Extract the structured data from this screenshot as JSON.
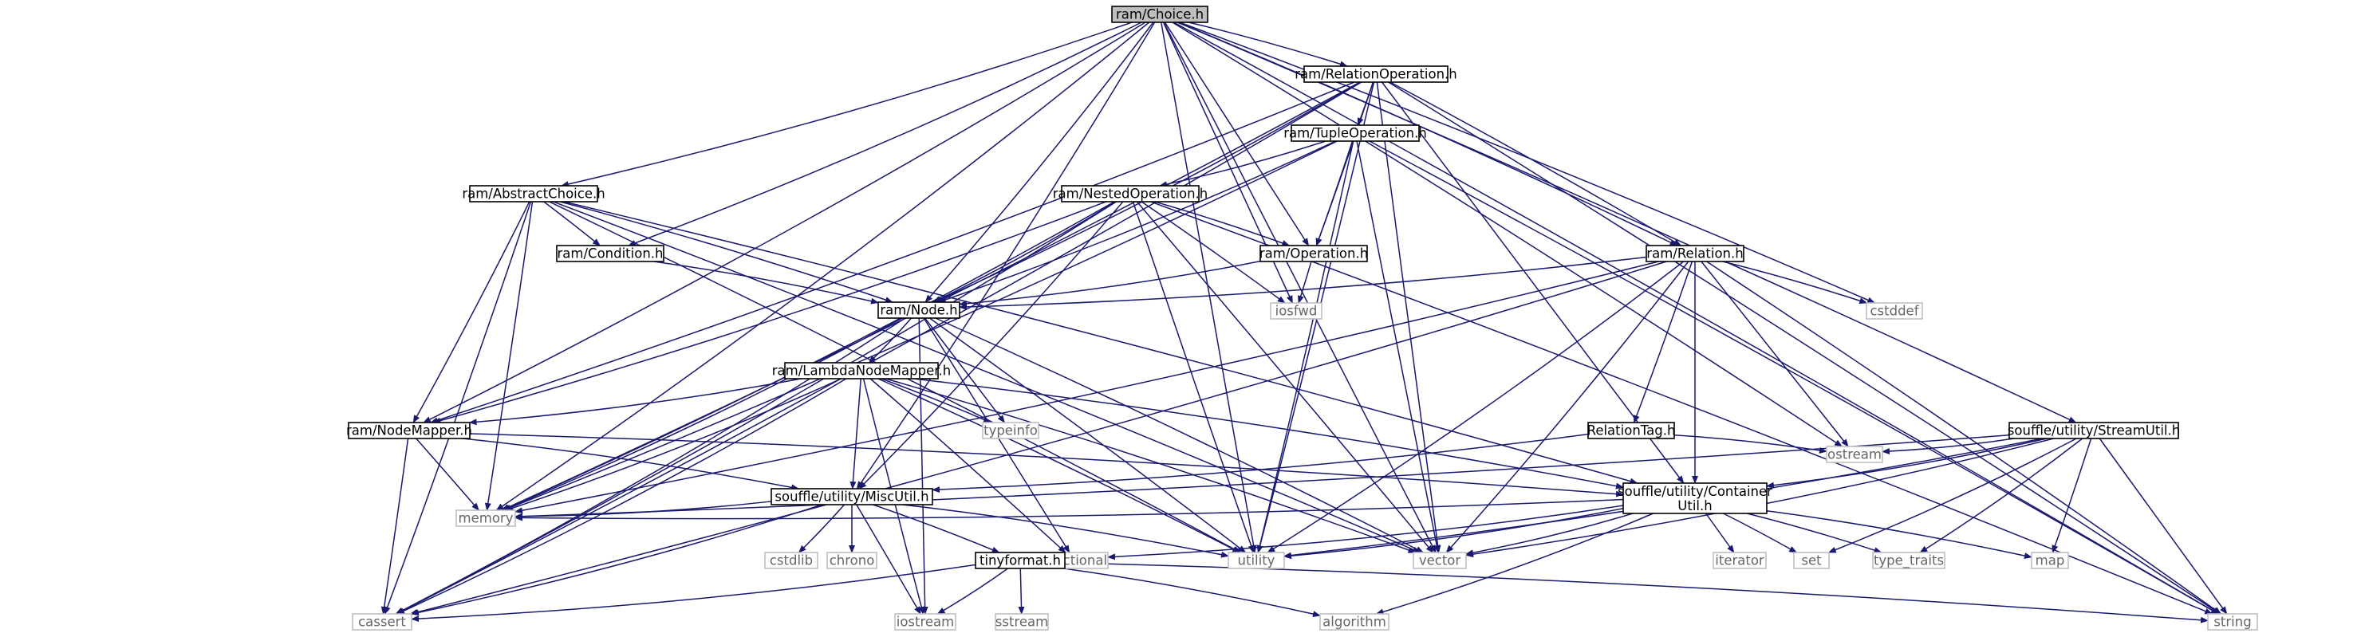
{
  "colors": {
    "edge": "#191970",
    "node_fill": "#ffffff",
    "node_border": "#000000",
    "external_border": "#bfbfbf",
    "root_fill": "#bfbfbf",
    "text": "#000000",
    "external_text": "#666666"
  },
  "nodes": [
    {
      "id": "choice",
      "label": "ram/Choice.h",
      "kind": "root"
    },
    {
      "id": "relop",
      "label": "ram/RelationOperation.h",
      "kind": "internal"
    },
    {
      "id": "tupleop",
      "label": "ram/TupleOperation.h",
      "kind": "internal"
    },
    {
      "id": "abschoice",
      "label": "ram/AbstractChoice.h",
      "kind": "internal"
    },
    {
      "id": "nestedop",
      "label": "ram/NestedOperation.h",
      "kind": "internal"
    },
    {
      "id": "condition",
      "label": "ram/Condition.h",
      "kind": "internal"
    },
    {
      "id": "operation",
      "label": "ram/Operation.h",
      "kind": "internal"
    },
    {
      "id": "relation",
      "label": "ram/Relation.h",
      "kind": "internal"
    },
    {
      "id": "node",
      "label": "ram/Node.h",
      "kind": "internal"
    },
    {
      "id": "iosfwd",
      "label": "iosfwd",
      "kind": "external"
    },
    {
      "id": "cstddef",
      "label": "cstddef",
      "kind": "external"
    },
    {
      "id": "lambda",
      "label": "ram/LambdaNodeMapper.h",
      "kind": "internal"
    },
    {
      "id": "typeinfo",
      "label": "typeinfo",
      "kind": "external"
    },
    {
      "id": "nodemapper",
      "label": "ram/NodeMapper.h",
      "kind": "internal"
    },
    {
      "id": "reltag",
      "label": "RelationTag.h",
      "kind": "internal"
    },
    {
      "id": "streamutil",
      "label": "souffle/utility/StreamUtil.h",
      "kind": "internal"
    },
    {
      "id": "ostream",
      "label": "ostream",
      "kind": "external"
    },
    {
      "id": "miscutil",
      "label": "souffle/utility/MiscUtil.h",
      "kind": "internal"
    },
    {
      "id": "container",
      "label": "souffle/utility/Container Util.h",
      "lines": [
        "souffle/utility/Container",
        "Util.h"
      ],
      "kind": "internal"
    },
    {
      "id": "memory",
      "label": "memory",
      "kind": "external"
    },
    {
      "id": "cstdlib",
      "label": "cstdlib",
      "kind": "external"
    },
    {
      "id": "chrono",
      "label": "chrono",
      "kind": "external"
    },
    {
      "id": "functional",
      "label": "functional",
      "kind": "external"
    },
    {
      "id": "utility",
      "label": "utility",
      "kind": "external"
    },
    {
      "id": "vector",
      "label": "vector",
      "kind": "external"
    },
    {
      "id": "iterator",
      "label": "iterator",
      "kind": "external"
    },
    {
      "id": "set",
      "label": "set",
      "kind": "external"
    },
    {
      "id": "type_traits",
      "label": "type_traits",
      "kind": "external"
    },
    {
      "id": "map",
      "label": "map",
      "kind": "external"
    },
    {
      "id": "tinyformat",
      "label": "tinyformat.h",
      "kind": "internal"
    },
    {
      "id": "cassert",
      "label": "cassert",
      "kind": "external"
    },
    {
      "id": "iostream",
      "label": "iostream",
      "kind": "external"
    },
    {
      "id": "sstream",
      "label": "sstream",
      "kind": "external"
    },
    {
      "id": "algorithm",
      "label": "algorithm",
      "kind": "external"
    },
    {
      "id": "string",
      "label": "string",
      "kind": "external"
    }
  ],
  "edges": [
    [
      "choice",
      "relop"
    ],
    [
      "choice",
      "abschoice"
    ],
    [
      "choice",
      "condition"
    ],
    [
      "choice",
      "operation"
    ],
    [
      "choice",
      "relation"
    ],
    [
      "choice",
      "node"
    ],
    [
      "choice",
      "nodemapper"
    ],
    [
      "choice",
      "miscutil"
    ],
    [
      "choice",
      "memory"
    ],
    [
      "choice",
      "utility"
    ],
    [
      "choice",
      "vector"
    ],
    [
      "choice",
      "string"
    ],
    [
      "choice",
      "iosfwd"
    ],
    [
      "choice",
      "cstddef"
    ],
    [
      "choice",
      "ostream"
    ],
    [
      "choice",
      "streamutil"
    ],
    [
      "relop",
      "tupleop"
    ],
    [
      "relop",
      "operation"
    ],
    [
      "relop",
      "relation"
    ],
    [
      "relop",
      "node"
    ],
    [
      "relop",
      "nodemapper"
    ],
    [
      "relop",
      "container"
    ],
    [
      "relop",
      "cassert"
    ],
    [
      "relop",
      "memory"
    ],
    [
      "relop",
      "utility"
    ],
    [
      "relop",
      "vector"
    ],
    [
      "relop",
      "string"
    ],
    [
      "tupleop",
      "nestedop"
    ],
    [
      "tupleop",
      "operation"
    ],
    [
      "tupleop",
      "node"
    ],
    [
      "tupleop",
      "memory"
    ],
    [
      "tupleop",
      "utility"
    ],
    [
      "tupleop",
      "vector"
    ],
    [
      "tupleop",
      "string"
    ],
    [
      "abschoice",
      "condition"
    ],
    [
      "abschoice",
      "node"
    ],
    [
      "abschoice",
      "nodemapper"
    ],
    [
      "abschoice",
      "cassert"
    ],
    [
      "abschoice",
      "memory"
    ],
    [
      "abschoice",
      "utility"
    ],
    [
      "abschoice",
      "vector"
    ],
    [
      "abschoice",
      "container"
    ],
    [
      "nestedop",
      "operation"
    ],
    [
      "nestedop",
      "node"
    ],
    [
      "nestedop",
      "nodemapper"
    ],
    [
      "nestedop",
      "miscutil"
    ],
    [
      "nestedop",
      "cassert"
    ],
    [
      "nestedop",
      "memory"
    ],
    [
      "nestedop",
      "utility"
    ],
    [
      "nestedop",
      "vector"
    ],
    [
      "nestedop",
      "iosfwd"
    ],
    [
      "nestedop",
      "string"
    ],
    [
      "condition",
      "node"
    ],
    [
      "operation",
      "node"
    ],
    [
      "operation",
      "iosfwd"
    ],
    [
      "relation",
      "node"
    ],
    [
      "relation",
      "reltag"
    ],
    [
      "relation",
      "container"
    ],
    [
      "relation",
      "cstddef"
    ],
    [
      "relation",
      "memory"
    ],
    [
      "relation",
      "utility"
    ],
    [
      "relation",
      "vector"
    ],
    [
      "relation",
      "string"
    ],
    [
      "relation",
      "ostream"
    ],
    [
      "relation",
      "cassert"
    ],
    [
      "node",
      "lambda"
    ],
    [
      "node",
      "typeinfo"
    ],
    [
      "node",
      "cassert"
    ],
    [
      "node",
      "functional"
    ],
    [
      "node",
      "iostream"
    ],
    [
      "node",
      "memory"
    ],
    [
      "node",
      "utility"
    ],
    [
      "node",
      "vector"
    ],
    [
      "lambda",
      "nodemapper"
    ],
    [
      "lambda",
      "container"
    ],
    [
      "lambda",
      "miscutil"
    ],
    [
      "lambda",
      "typeinfo"
    ],
    [
      "lambda",
      "cassert"
    ],
    [
      "lambda",
      "functional"
    ],
    [
      "lambda",
      "iostream"
    ],
    [
      "lambda",
      "memory"
    ],
    [
      "lambda",
      "utility"
    ],
    [
      "lambda",
      "vector"
    ],
    [
      "nodemapper",
      "miscutil"
    ],
    [
      "nodemapper",
      "container"
    ],
    [
      "nodemapper",
      "cassert"
    ],
    [
      "nodemapper",
      "memory"
    ],
    [
      "reltag",
      "ostream"
    ],
    [
      "reltag",
      "miscutil"
    ],
    [
      "streamutil",
      "container"
    ],
    [
      "streamutil",
      "ostream"
    ],
    [
      "streamutil",
      "memory"
    ],
    [
      "streamutil",
      "utility"
    ],
    [
      "streamutil",
      "vector"
    ],
    [
      "streamutil",
      "set"
    ],
    [
      "streamutil",
      "type_traits"
    ],
    [
      "streamutil",
      "map"
    ],
    [
      "streamutil",
      "string"
    ],
    [
      "miscutil",
      "tinyformat"
    ],
    [
      "miscutil",
      "memory"
    ],
    [
      "miscutil",
      "cstdlib"
    ],
    [
      "miscutil",
      "chrono"
    ],
    [
      "miscutil",
      "utility"
    ],
    [
      "miscutil",
      "cassert"
    ],
    [
      "miscutil",
      "iostream"
    ],
    [
      "container",
      "memory"
    ],
    [
      "container",
      "functional"
    ],
    [
      "container",
      "utility"
    ],
    [
      "container",
      "vector"
    ],
    [
      "container",
      "iterator"
    ],
    [
      "container",
      "set"
    ],
    [
      "container",
      "type_traits"
    ],
    [
      "container",
      "map"
    ],
    [
      "container",
      "algorithm"
    ],
    [
      "tinyformat",
      "cassert"
    ],
    [
      "tinyformat",
      "iostream"
    ],
    [
      "tinyformat",
      "sstream"
    ],
    [
      "tinyformat",
      "algorithm"
    ],
    [
      "tinyformat",
      "string"
    ]
  ]
}
